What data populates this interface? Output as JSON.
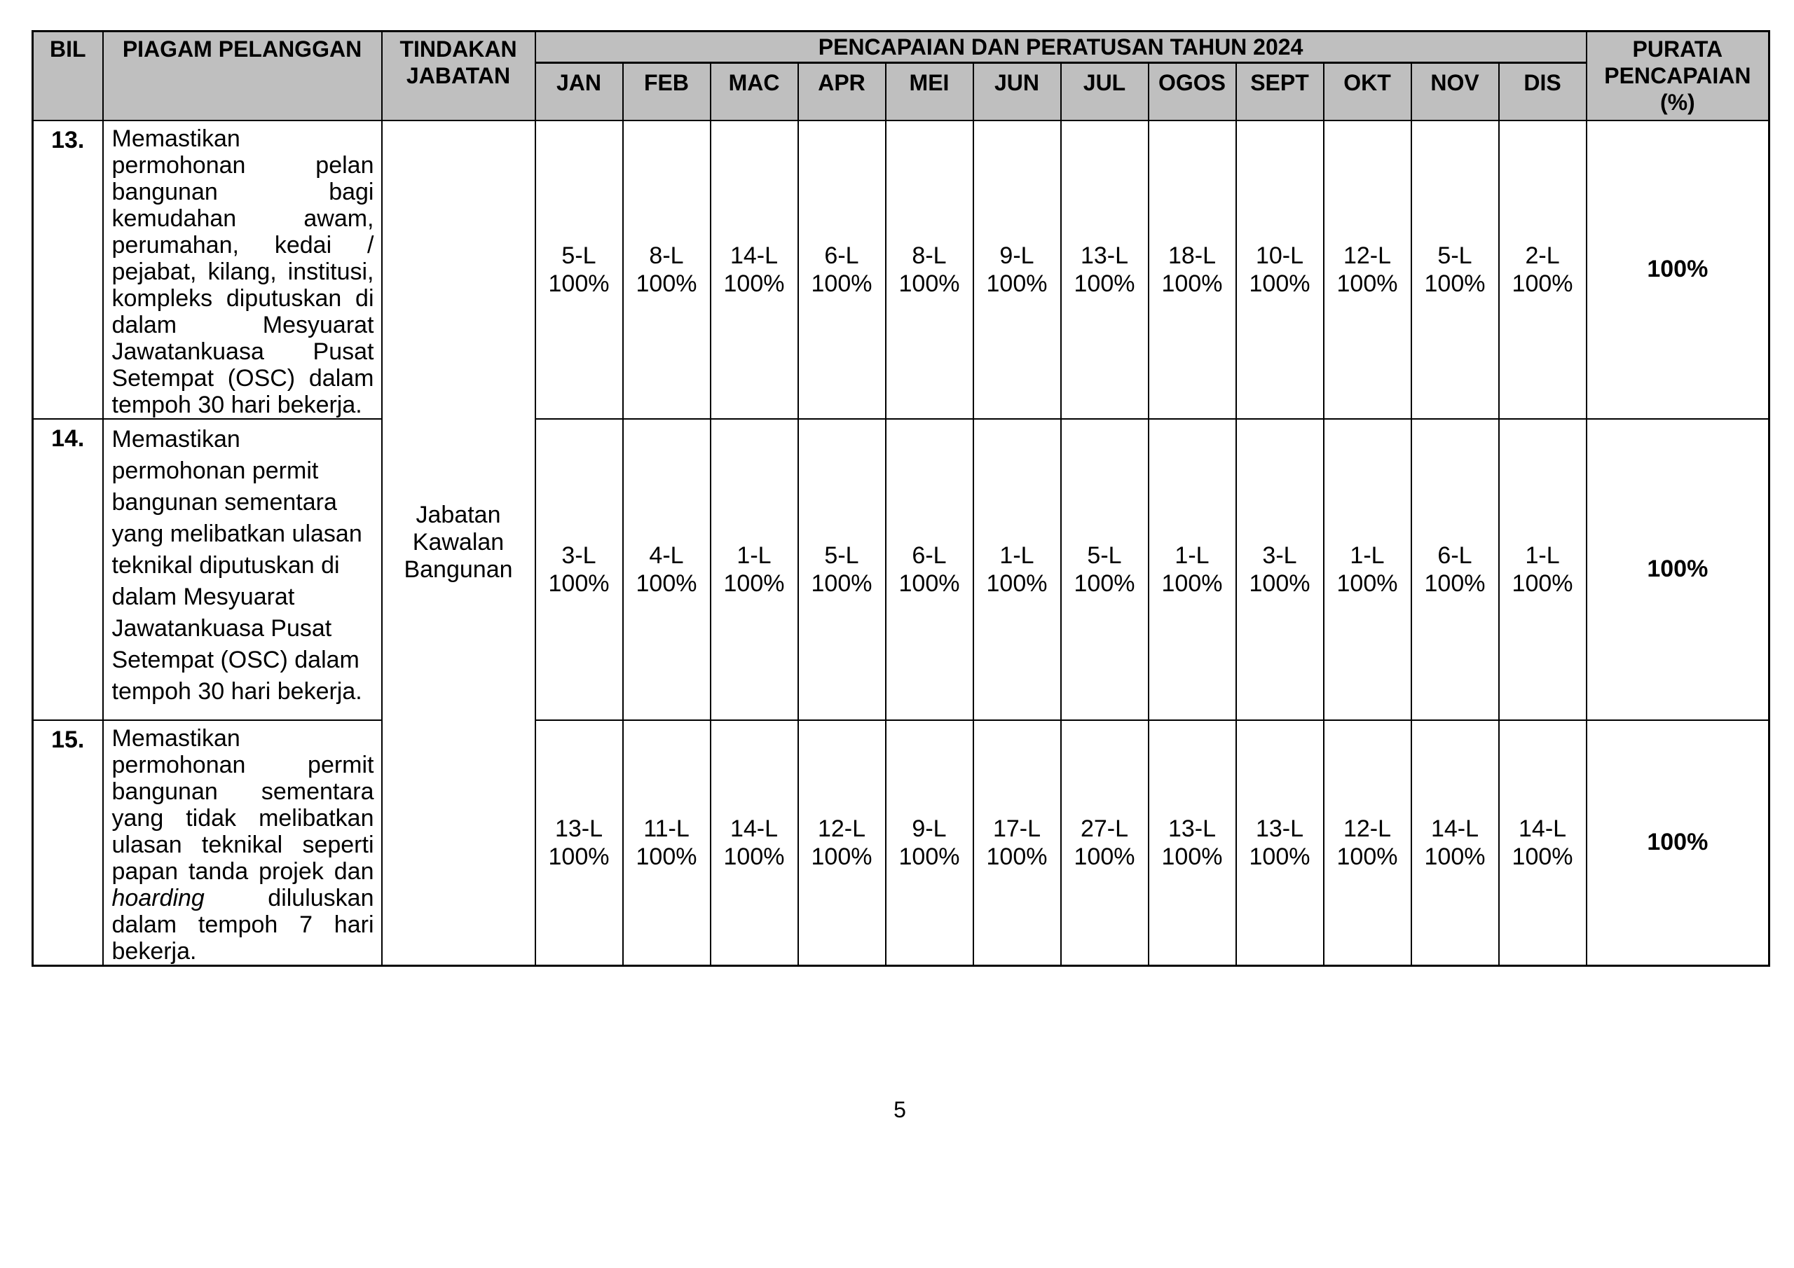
{
  "page": {
    "number": "5"
  },
  "colors": {
    "header_bg": "#bfbfbf",
    "border": "#000000",
    "page_bg": "#ffffff"
  },
  "table": {
    "header": {
      "bil": "BIL",
      "piagam": "PIAGAM PELANGGAN",
      "tindakan": "TINDAKAN JABATAN",
      "pencapaian_title": "PENCAPAIAN DAN PERATUSAN TAHUN 2024",
      "months": [
        "JAN",
        "FEB",
        "MAC",
        "APR",
        "MEI",
        "JUN",
        "JUL",
        "OGOS",
        "SEPT",
        "OKT",
        "NOV",
        "DIS"
      ],
      "purata": "PURATA PENCAPAIAN (%)"
    },
    "tindakan_jabatan": "Jabatan Kawalan Bangunan",
    "rows": [
      {
        "bil": "13.",
        "text_before": "Memastikan permohonan pelan bangunan bagi kemudahan awam, perumahan, kedai / pejabat, kilang, institusi, kompleks diputuskan di dalam Mesyuarat Jawatankuasa Pusat Setempat (OSC) dalam tempoh 30 hari bekerja.",
        "text_italic": "",
        "text_after": "",
        "monthly": [
          {
            "value": "5-L",
            "pct": "100%"
          },
          {
            "value": "8-L",
            "pct": "100%"
          },
          {
            "value": "14-L",
            "pct": "100%"
          },
          {
            "value": "6-L",
            "pct": "100%"
          },
          {
            "value": "8-L",
            "pct": "100%"
          },
          {
            "value": "9-L",
            "pct": "100%"
          },
          {
            "value": "13-L",
            "pct": "100%"
          },
          {
            "value": "18-L",
            "pct": "100%"
          },
          {
            "value": "10-L",
            "pct": "100%"
          },
          {
            "value": "12-L",
            "pct": "100%"
          },
          {
            "value": "5-L",
            "pct": "100%"
          },
          {
            "value": "2-L",
            "pct": "100%"
          }
        ],
        "purata": "100%"
      },
      {
        "bil": "14.",
        "text_before": "Memastikan permohonan permit bangunan sementara yang melibatkan ulasan teknikal diputuskan di dalam Mesyuarat Jawatankuasa Pusat Setempat (OSC) dalam tempoh 30 hari bekerja.",
        "text_italic": "",
        "text_after": "",
        "monthly": [
          {
            "value": "3-L",
            "pct": "100%"
          },
          {
            "value": "4-L",
            "pct": "100%"
          },
          {
            "value": "1-L",
            "pct": "100%"
          },
          {
            "value": "5-L",
            "pct": "100%"
          },
          {
            "value": "6-L",
            "pct": "100%"
          },
          {
            "value": "1-L",
            "pct": "100%"
          },
          {
            "value": "5-L",
            "pct": "100%"
          },
          {
            "value": "1-L",
            "pct": "100%"
          },
          {
            "value": "3-L",
            "pct": "100%"
          },
          {
            "value": "1-L",
            "pct": "100%"
          },
          {
            "value": "6-L",
            "pct": "100%"
          },
          {
            "value": "1-L",
            "pct": "100%"
          }
        ],
        "purata": "100%"
      },
      {
        "bil": "15.",
        "text_before": "Memastikan permohonan permit bangunan sementara yang tidak melibatkan ulasan teknikal seperti papan tanda projek dan ",
        "text_italic": "hoarding",
        "text_after": " diluluskan dalam tempoh 7 hari bekerja.",
        "monthly": [
          {
            "value": "13-L",
            "pct": "100%"
          },
          {
            "value": "11-L",
            "pct": "100%"
          },
          {
            "value": "14-L",
            "pct": "100%"
          },
          {
            "value": "12-L",
            "pct": "100%"
          },
          {
            "value": "9-L",
            "pct": "100%"
          },
          {
            "value": "17-L",
            "pct": "100%"
          },
          {
            "value": "27-L",
            "pct": "100%"
          },
          {
            "value": "13-L",
            "pct": "100%"
          },
          {
            "value": "13-L",
            "pct": "100%"
          },
          {
            "value": "12-L",
            "pct": "100%"
          },
          {
            "value": "14-L",
            "pct": "100%"
          },
          {
            "value": "14-L",
            "pct": "100%"
          }
        ],
        "purata": "100%"
      }
    ]
  }
}
